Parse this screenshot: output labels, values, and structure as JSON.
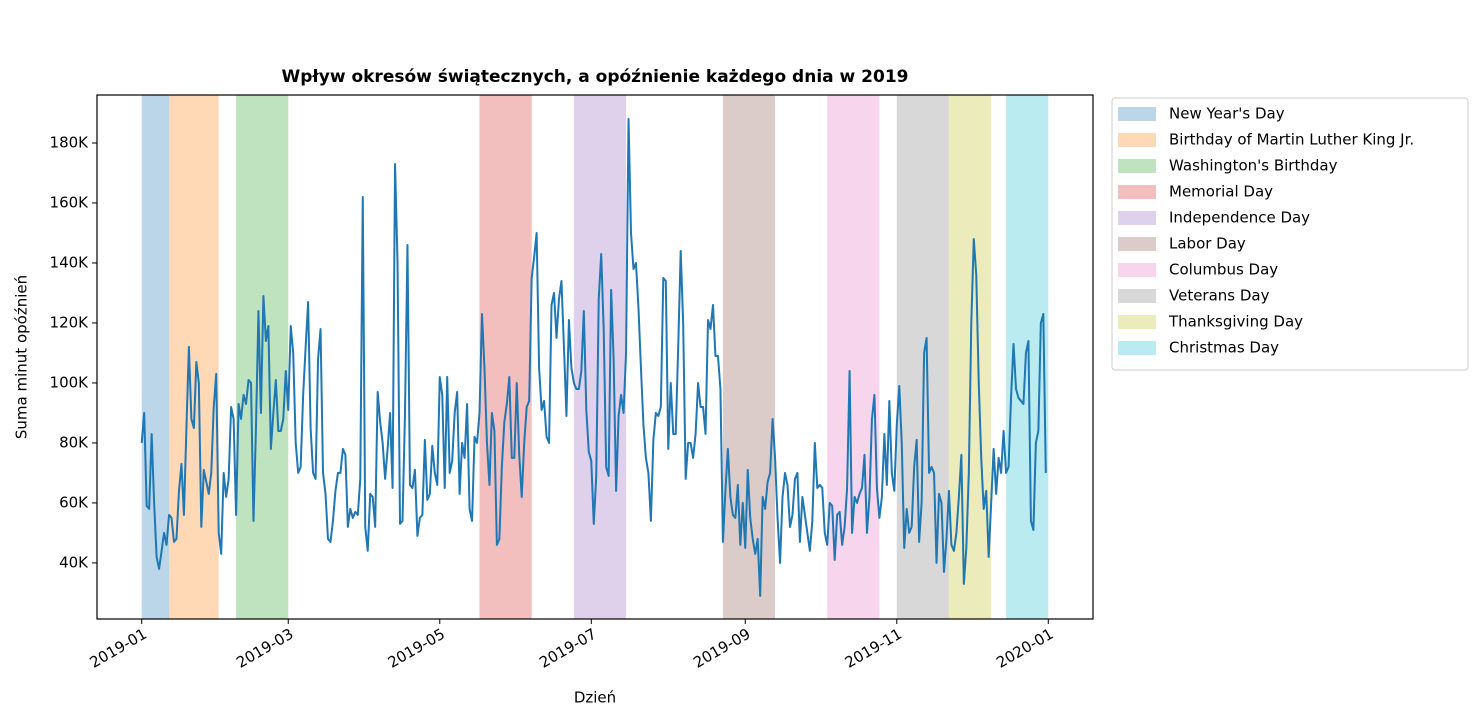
{
  "chart_data": {
    "type": "line",
    "title": "Wpływ okresów świątecznych, a opóźnienie każdego dnia w 2019",
    "xlabel": "Dzień",
    "ylabel": "Suma minut opóźnień",
    "xlim": [
      "2018-12-14",
      "2020-01-19"
    ],
    "xticks": [
      {
        "value": "2019-01-01",
        "label": "2019-01"
      },
      {
        "value": "2019-03-01",
        "label": "2019-03"
      },
      {
        "value": "2019-05-01",
        "label": "2019-05"
      },
      {
        "value": "2019-07-01",
        "label": "2019-07"
      },
      {
        "value": "2019-09-01",
        "label": "2019-09"
      },
      {
        "value": "2019-11-01",
        "label": "2019-11"
      },
      {
        "value": "2020-01-01",
        "label": "2020-01"
      }
    ],
    "ylim": [
      21300,
      196000
    ],
    "yticks": [
      {
        "value": 40000,
        "label": "40K"
      },
      {
        "value": 60000,
        "label": "60K"
      },
      {
        "value": 80000,
        "label": "80K"
      },
      {
        "value": 100000,
        "label": "100K"
      },
      {
        "value": 120000,
        "label": "120K"
      },
      {
        "value": 140000,
        "label": "140K"
      },
      {
        "value": 160000,
        "label": "160K"
      },
      {
        "value": 180000,
        "label": "180K"
      }
    ],
    "legend": "outside-upper-right",
    "span_alpha": 0.3,
    "spans": [
      {
        "name": "New Year's Day",
        "start": "2019-01-01",
        "end": "2019-01-12",
        "color": "#1f77b4"
      },
      {
        "name": "Birthday of Martin Luther King Jr.",
        "start": "2019-01-12",
        "end": "2019-02-01",
        "color": "#ff7f0e"
      },
      {
        "name": "Washington's Birthday",
        "start": "2019-02-08",
        "end": "2019-03-01",
        "color": "#2ca02c"
      },
      {
        "name": "Memorial Day",
        "start": "2019-05-17",
        "end": "2019-06-07",
        "color": "#d62728"
      },
      {
        "name": "Independence Day",
        "start": "2019-06-24",
        "end": "2019-07-15",
        "color": "#9467bd"
      },
      {
        "name": "Labor Day",
        "start": "2019-08-23",
        "end": "2019-09-13",
        "color": "#8c564b"
      },
      {
        "name": "Columbus Day",
        "start": "2019-10-04",
        "end": "2019-10-25",
        "color": "#e377c2"
      },
      {
        "name": "Veterans Day",
        "start": "2019-11-01",
        "end": "2019-11-22",
        "color": "#7f7f7f"
      },
      {
        "name": "Thanksgiving Day",
        "start": "2019-11-22",
        "end": "2019-12-09",
        "color": "#bcbd22"
      },
      {
        "name": "Christmas Day",
        "start": "2019-12-15",
        "end": "2020-01-01",
        "color": "#17becf"
      }
    ],
    "x": [
      "2019-01-01",
      "2019-01-02",
      "2019-01-03",
      "2019-01-04",
      "2019-01-05",
      "2019-01-06",
      "2019-01-07",
      "2019-01-08",
      "2019-01-09",
      "2019-01-10",
      "2019-01-11",
      "2019-01-12",
      "2019-01-13",
      "2019-01-14",
      "2019-01-15",
      "2019-01-16",
      "2019-01-17",
      "2019-01-18",
      "2019-01-19",
      "2019-01-20",
      "2019-01-21",
      "2019-01-22",
      "2019-01-23",
      "2019-01-24",
      "2019-01-25",
      "2019-01-26",
      "2019-01-27",
      "2019-01-28",
      "2019-01-29",
      "2019-01-30",
      "2019-01-31",
      "2019-02-01",
      "2019-02-02",
      "2019-02-03",
      "2019-02-04",
      "2019-02-05",
      "2019-02-06",
      "2019-02-07",
      "2019-02-08",
      "2019-02-09",
      "2019-02-10",
      "2019-02-11",
      "2019-02-12",
      "2019-02-13",
      "2019-02-14",
      "2019-02-15",
      "2019-02-16",
      "2019-02-17",
      "2019-02-18",
      "2019-02-19",
      "2019-02-20",
      "2019-02-21",
      "2019-02-22",
      "2019-02-23",
      "2019-02-24",
      "2019-02-25",
      "2019-02-26",
      "2019-02-27",
      "2019-02-28",
      "2019-03-01",
      "2019-03-02",
      "2019-03-03",
      "2019-03-04",
      "2019-03-05",
      "2019-03-06",
      "2019-03-07",
      "2019-03-08",
      "2019-03-09",
      "2019-03-10",
      "2019-03-11",
      "2019-03-12",
      "2019-03-13",
      "2019-03-14",
      "2019-03-15",
      "2019-03-16",
      "2019-03-17",
      "2019-03-18",
      "2019-03-19",
      "2019-03-20",
      "2019-03-21",
      "2019-03-22",
      "2019-03-23",
      "2019-03-24",
      "2019-03-25",
      "2019-03-26",
      "2019-03-27",
      "2019-03-28",
      "2019-03-29",
      "2019-03-30",
      "2019-03-31",
      "2019-04-01",
      "2019-04-02",
      "2019-04-03",
      "2019-04-04",
      "2019-04-05",
      "2019-04-06",
      "2019-04-07",
      "2019-04-08",
      "2019-04-09",
      "2019-04-10",
      "2019-04-11",
      "2019-04-12",
      "2019-04-13",
      "2019-04-14",
      "2019-04-15",
      "2019-04-16",
      "2019-04-17",
      "2019-04-18",
      "2019-04-19",
      "2019-04-20",
      "2019-04-21",
      "2019-04-22",
      "2019-04-23",
      "2019-04-24",
      "2019-04-25",
      "2019-04-26",
      "2019-04-27",
      "2019-04-28",
      "2019-04-29",
      "2019-04-30",
      "2019-05-01",
      "2019-05-02",
      "2019-05-03",
      "2019-05-04",
      "2019-05-05",
      "2019-05-06",
      "2019-05-07",
      "2019-05-08",
      "2019-05-09",
      "2019-05-10",
      "2019-05-11",
      "2019-05-12",
      "2019-05-13",
      "2019-05-14",
      "2019-05-15",
      "2019-05-16",
      "2019-05-17",
      "2019-05-18",
      "2019-05-19",
      "2019-05-20",
      "2019-05-21",
      "2019-05-22",
      "2019-05-23",
      "2019-05-24",
      "2019-05-25",
      "2019-05-26",
      "2019-05-27",
      "2019-05-28",
      "2019-05-29",
      "2019-05-30",
      "2019-05-31",
      "2019-06-01",
      "2019-06-02",
      "2019-06-03",
      "2019-06-04",
      "2019-06-05",
      "2019-06-06",
      "2019-06-07",
      "2019-06-08",
      "2019-06-09",
      "2019-06-10",
      "2019-06-11",
      "2019-06-12",
      "2019-06-13",
      "2019-06-14",
      "2019-06-15",
      "2019-06-16",
      "2019-06-17",
      "2019-06-18",
      "2019-06-19",
      "2019-06-20",
      "2019-06-21",
      "2019-06-22",
      "2019-06-23",
      "2019-06-24",
      "2019-06-25",
      "2019-06-26",
      "2019-06-27",
      "2019-06-28",
      "2019-06-29",
      "2019-06-30",
      "2019-07-01",
      "2019-07-02",
      "2019-07-03",
      "2019-07-04",
      "2019-07-05",
      "2019-07-06",
      "2019-07-07",
      "2019-07-08",
      "2019-07-09",
      "2019-07-10",
      "2019-07-11",
      "2019-07-12",
      "2019-07-13",
      "2019-07-14",
      "2019-07-15",
      "2019-07-16",
      "2019-07-17",
      "2019-07-18",
      "2019-07-19",
      "2019-07-20",
      "2019-07-21",
      "2019-07-22",
      "2019-07-23",
      "2019-07-24",
      "2019-07-25",
      "2019-07-26",
      "2019-07-27",
      "2019-07-28",
      "2019-07-29",
      "2019-07-30",
      "2019-07-31",
      "2019-08-01",
      "2019-08-02",
      "2019-08-03",
      "2019-08-04",
      "2019-08-05",
      "2019-08-06",
      "2019-08-07",
      "2019-08-08",
      "2019-08-09",
      "2019-08-10",
      "2019-08-11",
      "2019-08-12",
      "2019-08-13",
      "2019-08-14",
      "2019-08-15",
      "2019-08-16",
      "2019-08-17",
      "2019-08-18",
      "2019-08-19",
      "2019-08-20",
      "2019-08-21",
      "2019-08-22",
      "2019-08-23",
      "2019-08-24",
      "2019-08-25",
      "2019-08-26",
      "2019-08-27",
      "2019-08-28",
      "2019-08-29",
      "2019-08-30",
      "2019-08-31",
      "2019-09-01",
      "2019-09-02",
      "2019-09-03",
      "2019-09-04",
      "2019-09-05",
      "2019-09-06",
      "2019-09-07",
      "2019-09-08",
      "2019-09-09",
      "2019-09-10",
      "2019-09-11",
      "2019-09-12",
      "2019-09-13",
      "2019-09-14",
      "2019-09-15",
      "2019-09-16",
      "2019-09-17",
      "2019-09-18",
      "2019-09-19",
      "2019-09-20",
      "2019-09-21",
      "2019-09-22",
      "2019-09-23",
      "2019-09-24",
      "2019-09-25",
      "2019-09-26",
      "2019-09-27",
      "2019-09-28",
      "2019-09-29",
      "2019-09-30",
      "2019-10-01",
      "2019-10-02",
      "2019-10-03",
      "2019-10-04",
      "2019-10-05",
      "2019-10-06",
      "2019-10-07",
      "2019-10-08",
      "2019-10-09",
      "2019-10-10",
      "2019-10-11",
      "2019-10-12",
      "2019-10-13",
      "2019-10-14",
      "2019-10-15",
      "2019-10-16",
      "2019-10-17",
      "2019-10-18",
      "2019-10-19",
      "2019-10-20",
      "2019-10-21",
      "2019-10-22",
      "2019-10-23",
      "2019-10-24",
      "2019-10-25",
      "2019-10-26",
      "2019-10-27",
      "2019-10-28",
      "2019-10-29",
      "2019-10-30",
      "2019-10-31",
      "2019-11-01",
      "2019-11-02",
      "2019-11-03",
      "2019-11-04",
      "2019-11-05",
      "2019-11-06",
      "2019-11-07",
      "2019-11-08",
      "2019-11-09",
      "2019-11-10",
      "2019-11-11",
      "2019-11-12",
      "2019-11-13",
      "2019-11-14",
      "2019-11-15",
      "2019-11-16",
      "2019-11-17",
      "2019-11-18",
      "2019-11-19",
      "2019-11-20",
      "2019-11-21",
      "2019-11-22",
      "2019-11-23",
      "2019-11-24",
      "2019-11-25",
      "2019-11-26",
      "2019-11-27",
      "2019-11-28",
      "2019-11-29",
      "2019-11-30",
      "2019-12-01",
      "2019-12-02",
      "2019-12-03",
      "2019-12-04",
      "2019-12-05",
      "2019-12-06",
      "2019-12-07",
      "2019-12-08",
      "2019-12-09",
      "2019-12-10",
      "2019-12-11",
      "2019-12-12",
      "2019-12-13",
      "2019-12-14",
      "2019-12-15",
      "2019-12-16",
      "2019-12-17",
      "2019-12-18",
      "2019-12-19",
      "2019-12-20",
      "2019-12-21",
      "2019-12-22",
      "2019-12-23",
      "2019-12-24",
      "2019-12-25",
      "2019-12-26",
      "2019-12-27",
      "2019-12-28",
      "2019-12-29",
      "2019-12-30",
      "2019-12-31"
    ],
    "series": [
      {
        "color": "#1f77b4",
        "values": [
          80000,
          90000,
          59000,
          58000,
          83000,
          60000,
          42000,
          38000,
          44000,
          50000,
          46000,
          56000,
          55000,
          47000,
          48000,
          64000,
          73000,
          56000,
          85000,
          112000,
          88000,
          85000,
          107000,
          100000,
          52000,
          71000,
          67000,
          63000,
          70000,
          92000,
          103000,
          50000,
          43000,
          70000,
          62000,
          68000,
          92000,
          88000,
          56000,
          93000,
          88000,
          96000,
          93000,
          101000,
          100000,
          54000,
          85000,
          124000,
          90000,
          129000,
          114000,
          119000,
          78000,
          90000,
          101000,
          84000,
          84000,
          88000,
          104000,
          91000,
          119000,
          110000,
          80000,
          70000,
          72000,
          96000,
          112000,
          127000,
          85000,
          70000,
          68000,
          108000,
          118000,
          70000,
          63000,
          48000,
          47000,
          54000,
          64000,
          70000,
          70000,
          78000,
          76000,
          52000,
          58000,
          55000,
          57000,
          56000,
          68000,
          162000,
          52000,
          44000,
          63000,
          62000,
          52000,
          97000,
          87000,
          80000,
          68000,
          78000,
          90000,
          65000,
          173000,
          140000,
          53000,
          54000,
          90000,
          146000,
          66000,
          65000,
          71000,
          49000,
          55000,
          56000,
          81000,
          61000,
          63000,
          79000,
          70000,
          66000,
          102000,
          96000,
          65000,
          102000,
          70000,
          74000,
          90000,
          97000,
          63000,
          80000,
          75000,
          93000,
          58000,
          54000,
          82000,
          80000,
          90000,
          123000,
          105000,
          80000,
          66000,
          90000,
          84000,
          46000,
          48000,
          72000,
          87000,
          93000,
          102000,
          75000,
          75000,
          100000,
          76000,
          62000,
          80000,
          92000,
          94000,
          135000,
          142000,
          150000,
          105000,
          91000,
          94000,
          82000,
          80000,
          126000,
          130000,
          115000,
          128000,
          134000,
          112000,
          89000,
          121000,
          105000,
          100000,
          98000,
          98000,
          104000,
          124000,
          91000,
          77000,
          74000,
          53000,
          69000,
          128000,
          143000,
          118000,
          72000,
          69000,
          131000,
          108000,
          64000,
          89000,
          96000,
          90000,
          110000,
          188000,
          150000,
          138000,
          140000,
          125000,
          105000,
          86000,
          75000,
          70000,
          54000,
          81000,
          90000,
          89000,
          92000,
          135000,
          134000,
          78000,
          100000,
          83000,
          83000,
          112000,
          144000,
          120000,
          68000,
          80000,
          80000,
          75000,
          83000,
          100000,
          92000,
          92000,
          83000,
          121000,
          118000,
          126000,
          109000,
          109000,
          98000,
          47000,
          64000,
          78000,
          62000,
          56000,
          55000,
          66000,
          46000,
          60000,
          45000,
          71000,
          55000,
          48000,
          43000,
          48000,
          29000,
          62000,
          58000,
          67000,
          70000,
          88000,
          75000,
          55000,
          40000,
          62000,
          70000,
          66000,
          52000,
          56000,
          68000,
          70000,
          47000,
          62000,
          56000,
          50000,
          44000,
          54000,
          80000,
          65000,
          66000,
          65000,
          50000,
          46000,
          60000,
          59000,
          41000,
          56000,
          57000,
          46000,
          52000,
          65000,
          104000,
          50000,
          62000,
          60000,
          63000,
          65000,
          76000,
          50000,
          62000,
          88000,
          96000,
          65000,
          55000,
          62000,
          83000,
          66000,
          94000,
          70000,
          64000,
          86000,
          99000,
          80000,
          45000,
          58000,
          50000,
          52000,
          72000,
          81000,
          47000,
          60000,
          110000,
          115000,
          70000,
          72000,
          70000,
          40000,
          63000,
          60000,
          37000,
          48000,
          64000,
          46000,
          44000,
          50000,
          62000,
          76000,
          33000,
          45000,
          70000,
          120000,
          148000,
          136000,
          100000,
          75000,
          58000,
          64000,
          42000,
          60000,
          78000,
          63000,
          75000,
          70000,
          84000,
          70000,
          72000,
          95000,
          113000,
          98000,
          95000,
          94000,
          93000,
          110000,
          114000,
          54000,
          51000,
          80000,
          84000,
          120000,
          123000,
          70000
        ]
      }
    ]
  }
}
